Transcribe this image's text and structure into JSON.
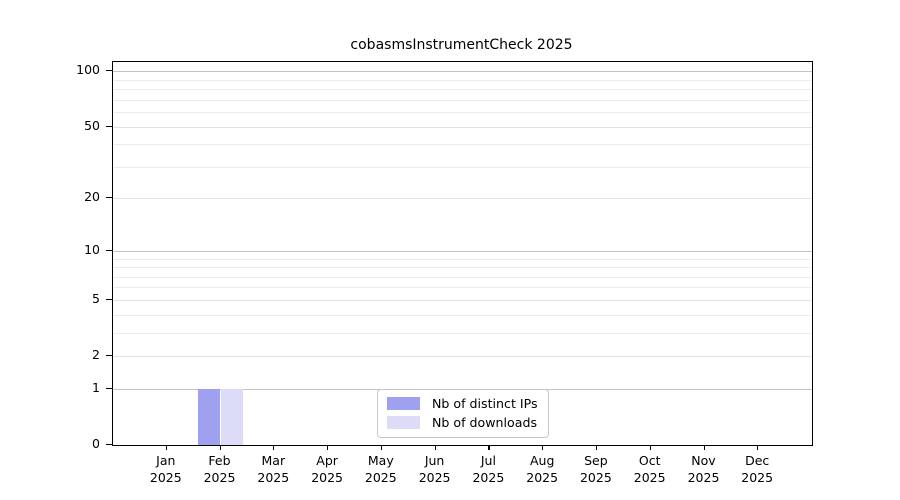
{
  "chart_data": {
    "type": "bar",
    "title": "cobasmsInstrumentCheck 2025",
    "year": "2025",
    "categories": [
      "Jan",
      "Feb",
      "Mar",
      "Apr",
      "May",
      "Jun",
      "Jul",
      "Aug",
      "Sep",
      "Oct",
      "Nov",
      "Dec"
    ],
    "series": [
      {
        "name": "Nb of distinct IPs",
        "color": "#a0a0f0",
        "values": [
          0,
          1,
          0,
          0,
          0,
          0,
          0,
          0,
          0,
          0,
          0,
          0
        ]
      },
      {
        "name": "Nb of downloads",
        "color": "#dcdcf8",
        "values": [
          0,
          1,
          0,
          0,
          0,
          0,
          0,
          0,
          0,
          0,
          0,
          0
        ]
      }
    ],
    "y_axis": {
      "scale": "log1p",
      "max": 112,
      "tick_values": [
        0,
        1,
        2,
        5,
        10,
        20,
        50,
        100
      ],
      "tick_labels": [
        "0",
        "1",
        "2",
        "5",
        "10",
        "20",
        "50",
        "100"
      ],
      "decade_grid_values": [
        1,
        10,
        100
      ],
      "major_grid_values": [
        2,
        5,
        20,
        50
      ],
      "minor_grid_values": [
        3,
        4,
        6,
        7,
        8,
        9,
        30,
        40,
        60,
        70,
        80,
        90
      ]
    },
    "legend": {
      "position": "lower center"
    },
    "colors": {
      "grid_minor": "#ededed",
      "grid_major": "#e2e2e2",
      "grid_decade": "#c3c3c3",
      "spine": "#000000",
      "background": "#ffffff"
    }
  }
}
